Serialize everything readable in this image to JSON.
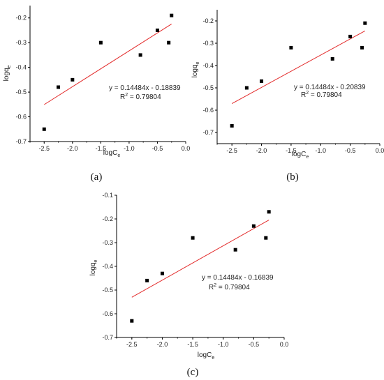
{
  "chart_data": [
    {
      "type": "scatter",
      "panel_label": "(a)",
      "xlabel": "logC",
      "xlabel_sub": "e",
      "ylabel": "logq",
      "ylabel_sub": "e",
      "xlim": [
        -2.75,
        0.0
      ],
      "ylim": [
        -0.7,
        -0.15
      ],
      "xticks": [
        -2.5,
        -2.0,
        -1.5,
        -1.0,
        -0.5,
        0.0
      ],
      "xtick_labels": [
        "-2.5",
        "-2.0",
        "-1.5",
        "-1.0",
        "-0.5",
        "0.0"
      ],
      "yticks": [
        -0.7,
        -0.6,
        -0.5,
        -0.4,
        -0.3,
        -0.2
      ],
      "ytick_labels": [
        "-0.7",
        "-0.6",
        "-0.5",
        "-0.4",
        "-0.3",
        "-0.2"
      ],
      "points": {
        "x": [
          -2.5,
          -2.25,
          -2.0,
          -1.5,
          -0.8,
          -0.5,
          -0.3,
          -0.25
        ],
        "y": [
          -0.65,
          -0.48,
          -0.45,
          -0.3,
          -0.35,
          -0.25,
          -0.3,
          -0.19
        ]
      },
      "fit": {
        "slope": 0.14484,
        "intercept": -0.18839,
        "x_range": [
          -2.5,
          -0.25
        ]
      },
      "equation": "y = 0.14484x - 0.18839",
      "r2_prefix": "R",
      "r2_sup": "2",
      "r2_value": " = 0.79804",
      "colors": {
        "points": "#000000",
        "fit_line": "#e32b2b"
      }
    },
    {
      "type": "scatter",
      "panel_label": "(b)",
      "xlabel": "logC",
      "xlabel_sub": "e",
      "ylabel": "logq",
      "ylabel_sub": "e",
      "xlim": [
        -2.75,
        0.0
      ],
      "ylim": [
        -0.75,
        -0.15
      ],
      "xticks": [
        -2.5,
        -2.0,
        -1.5,
        -1.0,
        -0.5,
        0.0
      ],
      "xtick_labels": [
        "-2.5",
        "-2.0",
        "-1.5",
        "-1.0",
        "-0.5",
        "0.0"
      ],
      "yticks": [
        -0.7,
        -0.6,
        -0.5,
        -0.4,
        -0.3,
        -0.2
      ],
      "ytick_labels": [
        "-0.7",
        "-0.6",
        "-0.5",
        "-0.4",
        "-0.3",
        "-0.2"
      ],
      "points": {
        "x": [
          -2.5,
          -2.25,
          -2.0,
          -1.5,
          -0.8,
          -0.5,
          -0.3,
          -0.25
        ],
        "y": [
          -0.67,
          -0.5,
          -0.47,
          -0.32,
          -0.37,
          -0.27,
          -0.32,
          -0.21
        ]
      },
      "fit": {
        "slope": 0.14484,
        "intercept": -0.20839,
        "x_range": [
          -2.5,
          -0.25
        ]
      },
      "equation": "y = 0.14484x - 0.20839",
      "r2_prefix": "R",
      "r2_sup": "2",
      "r2_value": " = 0.79804",
      "colors": {
        "points": "#000000",
        "fit_line": "#e32b2b"
      }
    },
    {
      "type": "scatter",
      "panel_label": "(c)",
      "xlabel": "logC",
      "xlabel_sub": "e",
      "ylabel": "logq",
      "ylabel_sub": "e",
      "xlim": [
        -2.75,
        0.0
      ],
      "ylim": [
        -0.7,
        -0.1
      ],
      "xticks": [
        -2.5,
        -2.0,
        -1.5,
        -1.0,
        -0.5,
        0.0
      ],
      "xtick_labels": [
        "-2.5",
        "-2.0",
        "-1.5",
        "-1.0",
        "-0.5",
        "0.0"
      ],
      "yticks": [
        -0.7,
        -0.6,
        -0.5,
        -0.4,
        -0.3,
        -0.2,
        -0.1
      ],
      "ytick_labels": [
        "-0.7",
        "-0.6",
        "-0.5",
        "-0.4",
        "-0.3",
        "-0.2",
        "-0.1"
      ],
      "points": {
        "x": [
          -2.5,
          -2.25,
          -2.0,
          -1.5,
          -0.8,
          -0.5,
          -0.3,
          -0.25
        ],
        "y": [
          -0.63,
          -0.46,
          -0.43,
          -0.28,
          -0.33,
          -0.23,
          -0.28,
          -0.17
        ]
      },
      "fit": {
        "slope": 0.14484,
        "intercept": -0.16839,
        "x_range": [
          -2.5,
          -0.25
        ]
      },
      "equation": "y = 0.14484x - 0.16839",
      "r2_prefix": "R",
      "r2_sup": "2",
      "r2_value": " = 0.79804",
      "colors": {
        "points": "#000000",
        "fit_line": "#e32b2b"
      }
    }
  ]
}
